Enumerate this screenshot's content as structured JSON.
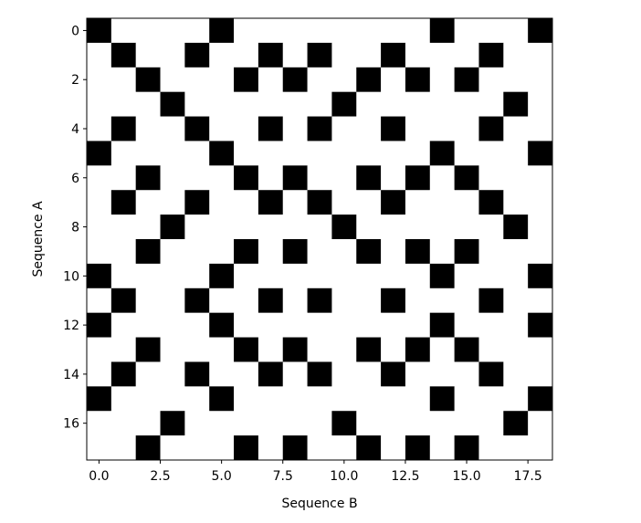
{
  "chart_data": {
    "type": "heatmap",
    "x_label": "Sequence B",
    "y_label": "Sequence A",
    "xlim": [
      -0.5,
      18.5
    ],
    "ylim": [
      17.5,
      -0.5
    ],
    "xticks": [
      {
        "value": 0,
        "label": "0.0"
      },
      2.5,
      {
        "value": 5,
        "label": "5.0"
      },
      7.5,
      {
        "value": 10,
        "label": "10.0"
      },
      12.5,
      {
        "value": 15,
        "label": "15.0"
      },
      17.5
    ],
    "yticks": [
      0,
      2,
      4,
      6,
      8,
      10,
      12,
      14,
      16
    ],
    "colors": [
      "#ffffff",
      "#000000"
    ],
    "z": [
      [
        1,
        0,
        0,
        0,
        0,
        1,
        0,
        0,
        0,
        0,
        0,
        0,
        0,
        0,
        1,
        0,
        0,
        0,
        1
      ],
      [
        0,
        1,
        0,
        0,
        1,
        0,
        0,
        1,
        0,
        1,
        0,
        0,
        1,
        0,
        0,
        0,
        1,
        0,
        0
      ],
      [
        0,
        0,
        1,
        0,
        0,
        0,
        1,
        0,
        1,
        0,
        0,
        1,
        0,
        1,
        0,
        1,
        0,
        0,
        0
      ],
      [
        0,
        0,
        0,
        1,
        0,
        0,
        0,
        0,
        0,
        0,
        1,
        0,
        0,
        0,
        0,
        0,
        0,
        1,
        0
      ],
      [
        0,
        1,
        0,
        0,
        1,
        0,
        0,
        1,
        0,
        1,
        0,
        0,
        1,
        0,
        0,
        0,
        1,
        0,
        0
      ],
      [
        1,
        0,
        0,
        0,
        0,
        1,
        0,
        0,
        0,
        0,
        0,
        0,
        0,
        0,
        1,
        0,
        0,
        0,
        1
      ],
      [
        0,
        0,
        1,
        0,
        0,
        0,
        1,
        0,
        1,
        0,
        0,
        1,
        0,
        1,
        0,
        1,
        0,
        0,
        0
      ],
      [
        0,
        1,
        0,
        0,
        1,
        0,
        0,
        1,
        0,
        1,
        0,
        0,
        1,
        0,
        0,
        0,
        1,
        0,
        0
      ],
      [
        0,
        0,
        0,
        1,
        0,
        0,
        0,
        0,
        0,
        0,
        1,
        0,
        0,
        0,
        0,
        0,
        0,
        1,
        0
      ],
      [
        0,
        0,
        1,
        0,
        0,
        0,
        1,
        0,
        1,
        0,
        0,
        1,
        0,
        1,
        0,
        1,
        0,
        0,
        0
      ],
      [
        1,
        0,
        0,
        0,
        0,
        1,
        0,
        0,
        0,
        0,
        0,
        0,
        0,
        0,
        1,
        0,
        0,
        0,
        1
      ],
      [
        0,
        1,
        0,
        0,
        1,
        0,
        0,
        1,
        0,
        1,
        0,
        0,
        1,
        0,
        0,
        0,
        1,
        0,
        0
      ],
      [
        1,
        0,
        0,
        0,
        0,
        1,
        0,
        0,
        0,
        0,
        0,
        0,
        0,
        0,
        1,
        0,
        0,
        0,
        1
      ],
      [
        0,
        0,
        1,
        0,
        0,
        0,
        1,
        0,
        1,
        0,
        0,
        1,
        0,
        1,
        0,
        1,
        0,
        0,
        0
      ],
      [
        0,
        1,
        0,
        0,
        1,
        0,
        0,
        1,
        0,
        1,
        0,
        0,
        1,
        0,
        0,
        0,
        1,
        0,
        0
      ],
      [
        1,
        0,
        0,
        0,
        0,
        1,
        0,
        0,
        0,
        0,
        0,
        0,
        0,
        0,
        1,
        0,
        0,
        0,
        1
      ],
      [
        0,
        0,
        0,
        1,
        0,
        0,
        0,
        0,
        0,
        0,
        1,
        0,
        0,
        0,
        0,
        0,
        0,
        1,
        0
      ],
      [
        0,
        0,
        1,
        0,
        0,
        0,
        1,
        0,
        1,
        0,
        0,
        1,
        0,
        1,
        0,
        1,
        0,
        0,
        0
      ]
    ]
  }
}
